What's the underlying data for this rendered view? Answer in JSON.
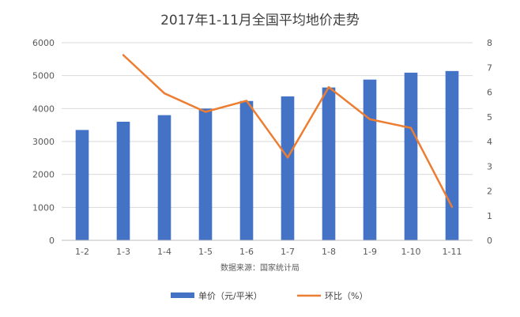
{
  "chart_data": {
    "type": "bar+line",
    "title": "2017年1-11月全国平均地价走势",
    "source_note": "数据来源：国家统计局",
    "categories": [
      "1-2",
      "1-3",
      "1-4",
      "1-5",
      "1-6",
      "1-7",
      "1-8",
      "1-9",
      "1-10",
      "1-11"
    ],
    "series": [
      {
        "name": "单价（元/平米）",
        "type": "bar",
        "axis": "left",
        "color": "#4472C4",
        "values": [
          3350,
          3600,
          3800,
          4000,
          4230,
          4370,
          4640,
          4880,
          5090,
          5140
        ]
      },
      {
        "name": "环比（%）",
        "type": "line",
        "axis": "right",
        "color": "#ED7D31",
        "values": [
          null,
          7.5,
          5.95,
          5.2,
          5.65,
          3.35,
          6.2,
          4.9,
          4.55,
          1.35
        ]
      }
    ],
    "y_left": {
      "min": 0,
      "max": 6000,
      "ticks": [
        0,
        1000,
        2000,
        3000,
        4000,
        5000,
        6000
      ]
    },
    "y_right": {
      "min": 0,
      "max": 8,
      "ticks": [
        0,
        1,
        2,
        3,
        4,
        5,
        6,
        7,
        8
      ]
    },
    "grid": true,
    "legend_position": "bottom"
  }
}
